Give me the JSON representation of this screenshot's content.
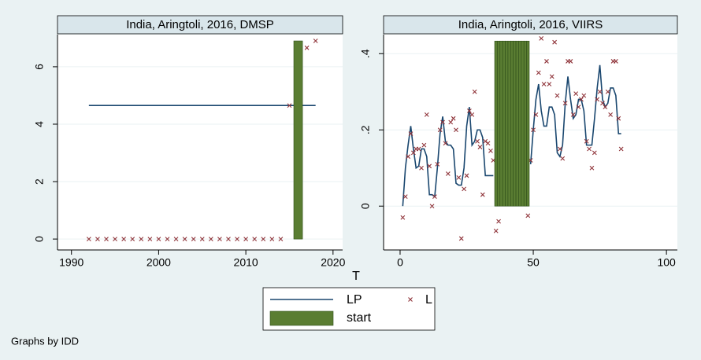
{
  "chart_data": [
    {
      "type": "combo",
      "title": "India, Aringtoli, 2016, DMSP",
      "xlim": [
        1988.4,
        2021.1
      ],
      "xticks": [
        1990,
        2000,
        2010,
        2020
      ],
      "ylim": [
        -0.38,
        7.12
      ],
      "yticks": [
        0,
        2,
        4,
        6
      ],
      "grid": true,
      "series": [
        {
          "name": "LP",
          "type": "line",
          "color": "#1a476f",
          "x": [
            1992,
            2018
          ],
          "values": [
            4.65,
            4.65
          ]
        },
        {
          "name": "L",
          "type": "scatter",
          "color": "#90353b",
          "x": [
            1992,
            1993,
            1994,
            1995,
            1996,
            1997,
            1998,
            1999,
            2000,
            2001,
            2002,
            2003,
            2004,
            2005,
            2006,
            2007,
            2008,
            2009,
            2010,
            2011,
            2012,
            2013,
            2014,
            2015,
            2017,
            2018
          ],
          "values": [
            0,
            0,
            0,
            0,
            0,
            0,
            0,
            0,
            0,
            0,
            0,
            0,
            0,
            0,
            0,
            0,
            0,
            0,
            0,
            0,
            0,
            0,
            0,
            4.65,
            6.66,
            6.9
          ]
        },
        {
          "name": "start",
          "type": "bar",
          "color": "#5a7d32",
          "x": [
            2016
          ],
          "values": [
            6.9
          ]
        }
      ]
    },
    {
      "type": "combo",
      "title": "India, Aringtoli, 2016, VIIRS",
      "xlim": [
        -6.2,
        104.1
      ],
      "xticks": [
        0,
        50,
        100
      ],
      "ylim": [
        -0.115,
        0.45
      ],
      "yticks": [
        0,
        {
          "value": 0.2,
          "label": ".2"
        },
        {
          "value": 0.4,
          "label": ".4"
        }
      ],
      "grid": true,
      "series": [
        {
          "name": "LP",
          "type": "line",
          "color": "#1a476f",
          "x": [
            1,
            2,
            3,
            4,
            5,
            6,
            7,
            8,
            9,
            10,
            11,
            12,
            13,
            14,
            15,
            16,
            17,
            18,
            19,
            20,
            21,
            22,
            23,
            24,
            25,
            26,
            27,
            28,
            29,
            30,
            31,
            32,
            33,
            34,
            35,
            36,
            37,
            38,
            39,
            40,
            41,
            42,
            43,
            44,
            45,
            46,
            47,
            48,
            49,
            50,
            51,
            52,
            53,
            54,
            55,
            56,
            57,
            58,
            59,
            60,
            61,
            62,
            63,
            64,
            65,
            66,
            67,
            68,
            69,
            70,
            71,
            72,
            73,
            74,
            75,
            76,
            77,
            78,
            79,
            80,
            81,
            82,
            83
          ],
          "values": [
            0,
            0.1,
            0.16,
            0.21,
            0.15,
            0.1,
            0.105,
            0.15,
            0.15,
            0.13,
            0.03,
            0.03,
            0.025,
            0.1,
            0.19,
            0.235,
            0.17,
            0.16,
            0.16,
            0.15,
            0.06,
            0.055,
            0.055,
            0.1,
            0.21,
            0.26,
            0.16,
            0.17,
            0.2,
            0.2,
            0.18,
            0.08,
            0.08,
            0.08,
            0.08,
            null,
            null,
            null,
            null,
            null,
            null,
            null,
            null,
            null,
            null,
            null,
            null,
            null,
            0.11,
            0.2,
            0.28,
            0.32,
            0.25,
            0.21,
            0.21,
            0.26,
            0.26,
            0.24,
            0.14,
            0.13,
            0.16,
            0.27,
            0.34,
            0.28,
            0.23,
            0.24,
            0.28,
            0.28,
            0.25,
            0.16,
            0.16,
            0.16,
            0.23,
            0.31,
            0.37,
            0.28,
            0.26,
            0.27,
            0.31,
            0.31,
            0.29,
            0.19,
            0.19
          ]
        },
        {
          "name": "L",
          "type": "scatter",
          "color": "#90353b",
          "x": [
            1,
            2,
            3,
            4,
            5,
            6,
            7,
            8,
            9,
            10,
            11,
            12,
            13,
            14,
            15,
            16,
            17,
            18,
            19,
            20,
            21,
            22,
            23,
            24,
            25,
            26,
            27,
            28,
            29,
            30,
            31,
            32,
            33,
            34,
            35,
            36,
            37,
            48,
            49,
            50,
            51,
            52,
            53,
            54,
            55,
            56,
            57,
            58,
            59,
            60,
            61,
            62,
            63,
            64,
            65,
            66,
            67,
            68,
            69,
            70,
            71,
            72,
            73,
            74,
            75,
            76,
            77,
            78,
            79,
            80,
            81,
            82,
            83
          ],
          "values": [
            -0.03,
            0.025,
            0.13,
            0.19,
            0.14,
            0.15,
            0.15,
            0.1,
            0.16,
            0.24,
            0.105,
            0.0,
            0.025,
            0.11,
            0.2,
            0.22,
            0.165,
            0.085,
            0.22,
            0.23,
            0.2,
            0.075,
            -0.085,
            0.045,
            0.08,
            0.25,
            0.24,
            0.3,
            0.17,
            0.155,
            0.03,
            0.17,
            0.165,
            0.145,
            0.12,
            -0.065,
            -0.04,
            -0.025,
            0.12,
            0.2,
            0.24,
            0.35,
            0.44,
            0.32,
            0.38,
            0.32,
            0.34,
            0.43,
            0.29,
            0.15,
            0.125,
            0.27,
            0.38,
            0.38,
            0.24,
            0.295,
            0.26,
            0.28,
            0.29,
            0.17,
            0.15,
            0.1,
            0.14,
            0.28,
            0.3,
            0.27,
            0.26,
            0.3,
            0.24,
            0.38,
            0.38,
            0.23,
            0.15
          ]
        },
        {
          "name": "start",
          "type": "bar",
          "color": "#5a7d32",
          "x": [
            36,
            37,
            38,
            39,
            40,
            41,
            42,
            43,
            44,
            45,
            46,
            47,
            48
          ],
          "values": [
            0.433,
            0.433,
            0.433,
            0.433,
            0.433,
            0.433,
            0.433,
            0.433,
            0.433,
            0.433,
            0.433,
            0.433,
            0.433
          ]
        }
      ]
    }
  ],
  "xlabel": "T",
  "note": "Graphs by IDD"
}
